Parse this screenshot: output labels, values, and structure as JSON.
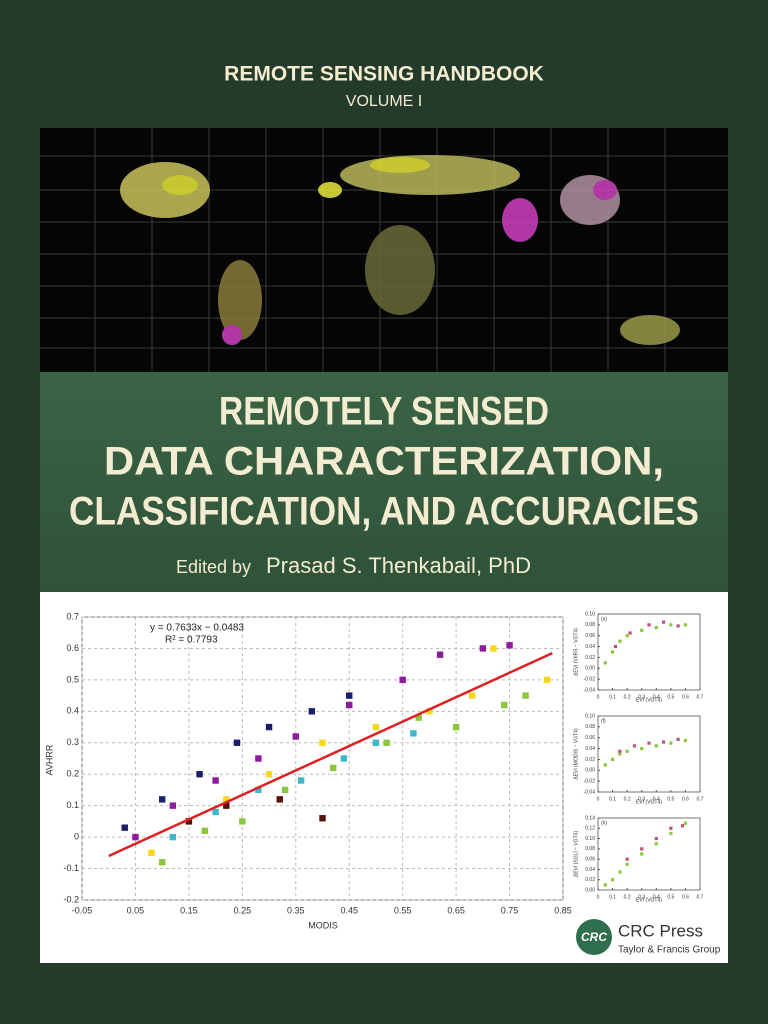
{
  "header": {
    "series": "REMOTE SENSING HANDBOOK",
    "volume": "VOLUME  I"
  },
  "title": {
    "lines": [
      "REMOTELY SENSED",
      "DATA CHARACTERIZATION,",
      "CLASSIFICATION, AND ACCURACIES"
    ],
    "editor_prefix": "Edited by",
    "editor": "Prasad S. Thenkabail, PhD"
  },
  "chart_data": [
    {
      "type": "scatter",
      "xlabel": "MODIS",
      "ylabel": "AVHRR",
      "annotations": [
        "y = 0.7633x − 0.0483",
        "R² = 0.7793"
      ],
      "xlim": [
        -0.05,
        0.85
      ],
      "xticks": [
        -0.05,
        0.05,
        0.15,
        0.25,
        0.35,
        0.45,
        0.55,
        0.65,
        0.75,
        0.85
      ],
      "ylim": [
        -0.2,
        0.7
      ],
      "yticks": [
        -0.2,
        -0.1,
        {
          "value": 0,
          "label": "0"
        },
        0.1,
        0.2,
        0.3,
        0.4,
        0.5,
        0.6,
        0.7
      ],
      "grid": true,
      "series": [
        {
          "color": "#8e1a9e",
          "x": [
            0.05,
            0.12,
            0.2,
            0.28,
            0.35,
            0.45,
            0.55,
            0.62,
            0.7,
            0.75
          ],
          "values": [
            0.0,
            0.1,
            0.18,
            0.25,
            0.32,
            0.42,
            0.5,
            0.58,
            0.6,
            0.61
          ]
        },
        {
          "color": "#f5d81b",
          "x": [
            0.08,
            0.15,
            0.22,
            0.3,
            0.4,
            0.5,
            0.6,
            0.68,
            0.72,
            0.82
          ],
          "values": [
            -0.05,
            0.05,
            0.12,
            0.2,
            0.3,
            0.35,
            0.4,
            0.45,
            0.6,
            0.5
          ]
        },
        {
          "color": "#8cc63f",
          "x": [
            0.1,
            0.18,
            0.25,
            0.33,
            0.42,
            0.52,
            0.58,
            0.65,
            0.74,
            0.78
          ],
          "values": [
            -0.08,
            0.02,
            0.05,
            0.15,
            0.22,
            0.3,
            0.38,
            0.35,
            0.42,
            0.45
          ]
        },
        {
          "color": "#1b1f6b",
          "x": [
            0.03,
            0.1,
            0.17,
            0.24,
            0.3,
            0.38,
            0.45
          ],
          "values": [
            0.03,
            0.12,
            0.2,
            0.3,
            0.35,
            0.4,
            0.45
          ]
        },
        {
          "color": "#3fb8c9",
          "x": [
            0.12,
            0.2,
            0.28,
            0.36,
            0.44,
            0.5,
            0.57
          ],
          "values": [
            0.0,
            0.08,
            0.15,
            0.18,
            0.25,
            0.3,
            0.33
          ]
        },
        {
          "color": "#5a0d0d",
          "x": [
            0.15,
            0.22,
            0.32,
            0.4
          ],
          "values": [
            0.05,
            0.1,
            0.12,
            0.06
          ]
        },
        {
          "type": "line",
          "color": "#e02020",
          "x": [
            0.0,
            0.83
          ],
          "values": [
            -0.06,
            0.585
          ]
        }
      ]
    },
    {
      "type": "scatter",
      "label": "(a)",
      "xlabel": "EVI (VGT4)",
      "ylabel": "ΔEVI (VIIRS − VGT4)",
      "xlim": [
        0,
        0.7
      ],
      "xticks": [
        0,
        0.1,
        0.2,
        0.3,
        0.4,
        0.5,
        0.6,
        0.7
      ],
      "ylim": [
        -0.04,
        0.1
      ],
      "yticks": [
        -0.04,
        -0.02,
        {
          "value": 0,
          "label": "0.00"
        },
        0.02,
        0.04,
        0.06,
        0.08,
        {
          "value": 0.1,
          "label": "0.10"
        }
      ],
      "grid": false,
      "series": [
        {
          "color": "#8cc63f",
          "x": [
            0.05,
            0.1,
            0.15,
            0.2,
            0.3,
            0.4,
            0.5,
            0.6
          ],
          "values": [
            0.01,
            0.03,
            0.05,
            0.06,
            0.07,
            0.075,
            0.08,
            0.08
          ]
        },
        {
          "color": "#c0507a",
          "x": [
            0.12,
            0.22,
            0.35,
            0.45,
            0.55
          ],
          "values": [
            0.04,
            0.065,
            0.08,
            0.085,
            0.078
          ]
        }
      ]
    },
    {
      "type": "scatter",
      "label": "(f)",
      "xlabel": "EVI (VGT4)",
      "ylabel": "ΔEVI (MODIS − VGT4)",
      "xlim": [
        0,
        0.7
      ],
      "xticks": [
        0,
        0.1,
        0.2,
        0.3,
        0.4,
        0.5,
        0.6,
        0.7
      ],
      "ylim": [
        -0.04,
        0.1
      ],
      "yticks": [
        -0.04,
        -0.02,
        {
          "value": 0,
          "label": "0.00"
        },
        0.02,
        0.04,
        0.06,
        0.08,
        {
          "value": 0.1,
          "label": "0.10"
        }
      ],
      "grid": false,
      "series": [
        {
          "color": "#8cc63f",
          "x": [
            0.05,
            0.1,
            0.15,
            0.2,
            0.3,
            0.4,
            0.5,
            0.6
          ],
          "values": [
            0.01,
            0.02,
            0.03,
            0.035,
            0.04,
            0.045,
            0.05,
            0.055
          ]
        },
        {
          "color": "#c0507a",
          "x": [
            0.15,
            0.25,
            0.35,
            0.45,
            0.55
          ],
          "values": [
            0.035,
            0.045,
            0.05,
            0.052,
            0.057
          ]
        }
      ]
    },
    {
      "type": "scatter",
      "label": "(h)",
      "xlabel": "EVI (VGT4)",
      "ylabel": "ΔEVI (SGLI − VGT4)",
      "xlim": [
        0,
        0.7
      ],
      "xticks": [
        0,
        0.1,
        0.2,
        0.3,
        0.4,
        0.5,
        0.6,
        0.7
      ],
      "ylim": [
        0,
        0.14
      ],
      "yticks": [
        {
          "value": 0,
          "label": "0.00"
        },
        0.02,
        0.04,
        0.06,
        0.08,
        {
          "value": 0.1,
          "label": "0.10"
        },
        0.12,
        0.14
      ],
      "grid": false,
      "series": [
        {
          "color": "#8cc63f",
          "x": [
            0.05,
            0.1,
            0.15,
            0.2,
            0.3,
            0.4,
            0.5,
            0.6
          ],
          "values": [
            0.01,
            0.02,
            0.035,
            0.05,
            0.07,
            0.09,
            0.11,
            0.13
          ]
        },
        {
          "color": "#c0507a",
          "x": [
            0.2,
            0.3,
            0.4,
            0.5,
            0.58
          ],
          "values": [
            0.06,
            0.08,
            0.1,
            0.12,
            0.125
          ]
        }
      ]
    }
  ],
  "publisher": {
    "logo": "CRC",
    "name": "CRC Press",
    "group": "Taylor & Francis Group"
  }
}
